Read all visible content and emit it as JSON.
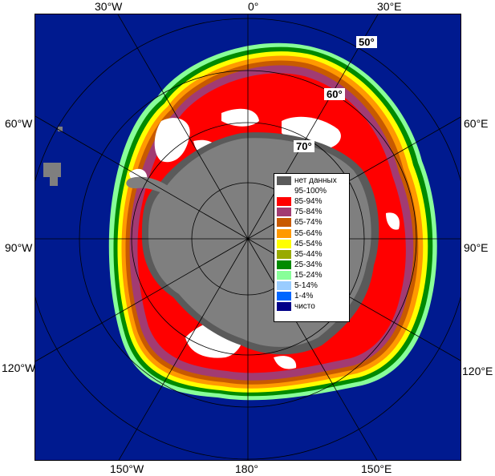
{
  "map": {
    "colors": {
      "ocean": "#001a8f",
      "land": "#7f7f7f",
      "nodata": "#5a5a5a",
      "ice_95_100": "#ffffff",
      "ice_85_94": "#ff0000",
      "ice_75_84": "#a23b72",
      "ice_65_74": "#c85a00",
      "ice_55_64": "#ff9900",
      "ice_45_54": "#ffff00",
      "ice_35_44": "#99aa00",
      "ice_25_34": "#008a00",
      "ice_15_24": "#88ff99",
      "ice_5_14": "#99ccff",
      "ice_1_4": "#0066ff",
      "clear": "#000088"
    },
    "longitude_labels": {
      "top_30w": "30°W",
      "top_0": "0°",
      "top_30e": "30°E",
      "left_60w": "60°W",
      "left_90w": "90°W",
      "left_120w": "120°W",
      "right_60e": "60°E",
      "right_90e": "90°E",
      "right_120e": "120°E",
      "bottom_150w": "150°W",
      "bottom_180": "180°",
      "bottom_150e": "150°E"
    },
    "latitude_labels": {
      "lat50": "50°",
      "lat60": "60°",
      "lat70": "70°"
    }
  },
  "legend": {
    "items": [
      {
        "label": "нет данных",
        "color": "#5a5a5a"
      },
      {
        "label": "95-100%",
        "color": "#ffffff"
      },
      {
        "label": "85-94%",
        "color": "#ff0000"
      },
      {
        "label": "75-84%",
        "color": "#a23b72"
      },
      {
        "label": "65-74%",
        "color": "#c85a00"
      },
      {
        "label": "55-64%",
        "color": "#ff9900"
      },
      {
        "label": "45-54%",
        "color": "#ffff00"
      },
      {
        "label": "35-44%",
        "color": "#99aa00"
      },
      {
        "label": "25-34%",
        "color": "#008a00"
      },
      {
        "label": "15-24%",
        "color": "#88ff99"
      },
      {
        "label": "5-14%",
        "color": "#99ccff"
      },
      {
        "label": "1-4%",
        "color": "#0066ff"
      },
      {
        "label": "чисто",
        "color": "#000088"
      }
    ]
  }
}
